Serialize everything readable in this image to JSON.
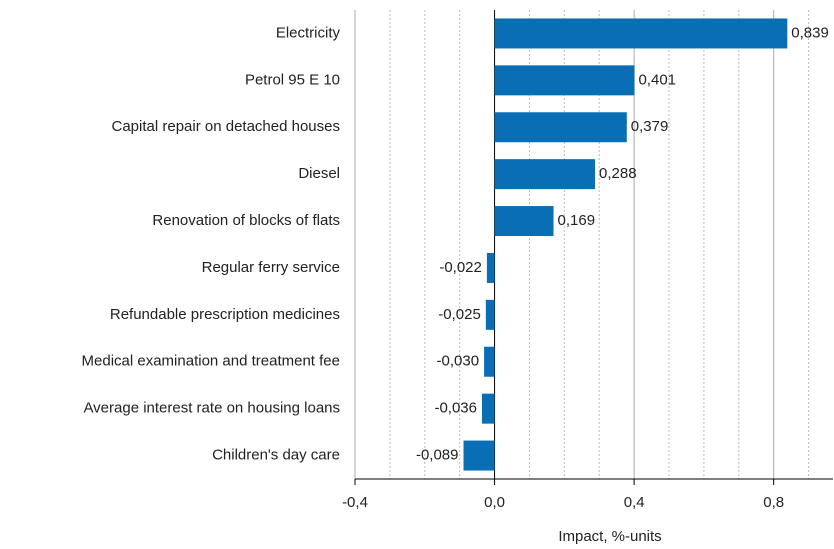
{
  "chart_data": {
    "type": "barh",
    "categories": [
      "Electricity",
      "Petrol 95 E 10",
      "Capital repair on detached houses",
      "Diesel",
      "Renovation of blocks of flats",
      "Regular ferry service",
      "Refundable prescription medicines",
      "Medical examination and treatment fee",
      "Average interest rate on housing loans",
      "Children's day care"
    ],
    "values": [
      0.839,
      0.401,
      0.379,
      0.288,
      0.169,
      -0.022,
      -0.025,
      -0.03,
      -0.036,
      -0.089
    ],
    "value_labels": [
      "0,839",
      "0,401",
      "0,379",
      "0,288",
      "0,169",
      "-0,022",
      "-0,025",
      "-0,030",
      "-0,036",
      "-0,089"
    ],
    "color": "#0a6eb4",
    "xlabel": "Impact, %-units",
    "xlim": [
      -0.4,
      0.97
    ],
    "xticks": [
      {
        "value": -0.4,
        "label": "-0,4"
      },
      {
        "value": 0,
        "label": "0,0"
      },
      {
        "value": 0.4,
        "label": "0,4"
      },
      {
        "value": 0.8,
        "label": "0,8"
      }
    ],
    "minor_xticks": [
      -0.3,
      -0.2,
      -0.1,
      0.1,
      0.2,
      0.3,
      0.5,
      0.6,
      0.7,
      0.9
    ],
    "grid": true
  }
}
